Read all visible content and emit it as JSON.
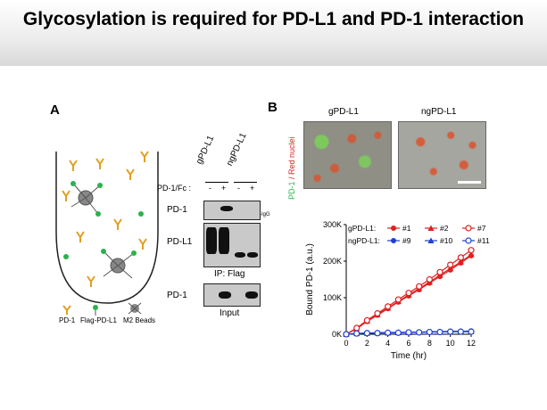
{
  "title": "Glycosylation is required for PD-L1 and PD-1 interaction",
  "panel_a": {
    "label": "A",
    "legend": [
      "PD-1",
      "Flag-PD-L1",
      "M2 Beads"
    ],
    "blot": {
      "lane_groups": [
        "gPD-L1",
        "ngPD-L1"
      ],
      "treatment_label": "PD-1/Fc :",
      "treatment_signs": [
        "-",
        "+",
        "-",
        "+"
      ],
      "rows": [
        "PD-1",
        "PD-L1",
        "PD-1"
      ],
      "igg_label": "-IgG",
      "ip_label": "IP: Flag",
      "input_label": "Input"
    }
  },
  "panel_b": {
    "label": "B",
    "micro_titles": [
      "gPD-L1",
      "ngPD-L1"
    ],
    "micro_side_label_green": "PD-1",
    "micro_side_label_red": " / Red nuclei"
  },
  "colors": {
    "g_series": "#e02020",
    "ng_series": "#1f3fd0",
    "title_band": "#e6e6e6"
  },
  "chart_data": {
    "type": "line",
    "x": [
      0,
      1,
      2,
      3,
      4,
      5,
      6,
      7,
      8,
      9,
      10,
      11,
      12
    ],
    "xlabel": "Time (hr)",
    "ylabel": "Bound PD-1 (a.u.)",
    "xticks": [
      "0",
      "2",
      "4",
      "6",
      "8",
      "10",
      "12"
    ],
    "yticks": [
      "0K",
      "100K",
      "200K",
      "300K"
    ],
    "xlim": [
      0,
      12
    ],
    "ylim": [
      0,
      300000
    ],
    "legend_groups": [
      {
        "label": "gPD-L1:",
        "entries": [
          "#1",
          "#2",
          "#7"
        ]
      },
      {
        "label": "ngPD-L1:",
        "entries": [
          "#9",
          "#10",
          "#11"
        ]
      }
    ],
    "series": [
      {
        "name": "#1",
        "group": "gPD-L1",
        "marker": "circle-filled",
        "values": [
          0,
          15000,
          35000,
          52000,
          70000,
          88000,
          105000,
          122000,
          140000,
          158000,
          176000,
          195000,
          215000
        ]
      },
      {
        "name": "#2",
        "group": "gPD-L1",
        "marker": "triangle-filled",
        "values": [
          0,
          16000,
          36000,
          54000,
          72000,
          90000,
          108000,
          125000,
          143000,
          162000,
          180000,
          198000,
          218000
        ]
      },
      {
        "name": "#7",
        "group": "gPD-L1",
        "marker": "circle-open",
        "values": [
          0,
          17000,
          38000,
          57000,
          76000,
          95000,
          113000,
          131000,
          150000,
          170000,
          190000,
          210000,
          230000
        ]
      },
      {
        "name": "#9",
        "group": "ngPD-L1",
        "marker": "circle-filled",
        "values": [
          0,
          2000,
          3000,
          4000,
          5000,
          5000,
          6000,
          6000,
          7000,
          7000,
          8000,
          8000,
          9000
        ]
      },
      {
        "name": "#10",
        "group": "ngPD-L1",
        "marker": "triangle-filled",
        "values": [
          0,
          2000,
          3000,
          4000,
          4000,
          5000,
          5000,
          6000,
          6000,
          7000,
          7000,
          8000,
          8000
        ]
      },
      {
        "name": "#11",
        "group": "ngPD-L1",
        "marker": "circle-open",
        "values": [
          0,
          2000,
          3000,
          3000,
          4000,
          4000,
          5000,
          5000,
          6000,
          6000,
          7000,
          7000,
          7000
        ]
      }
    ]
  }
}
